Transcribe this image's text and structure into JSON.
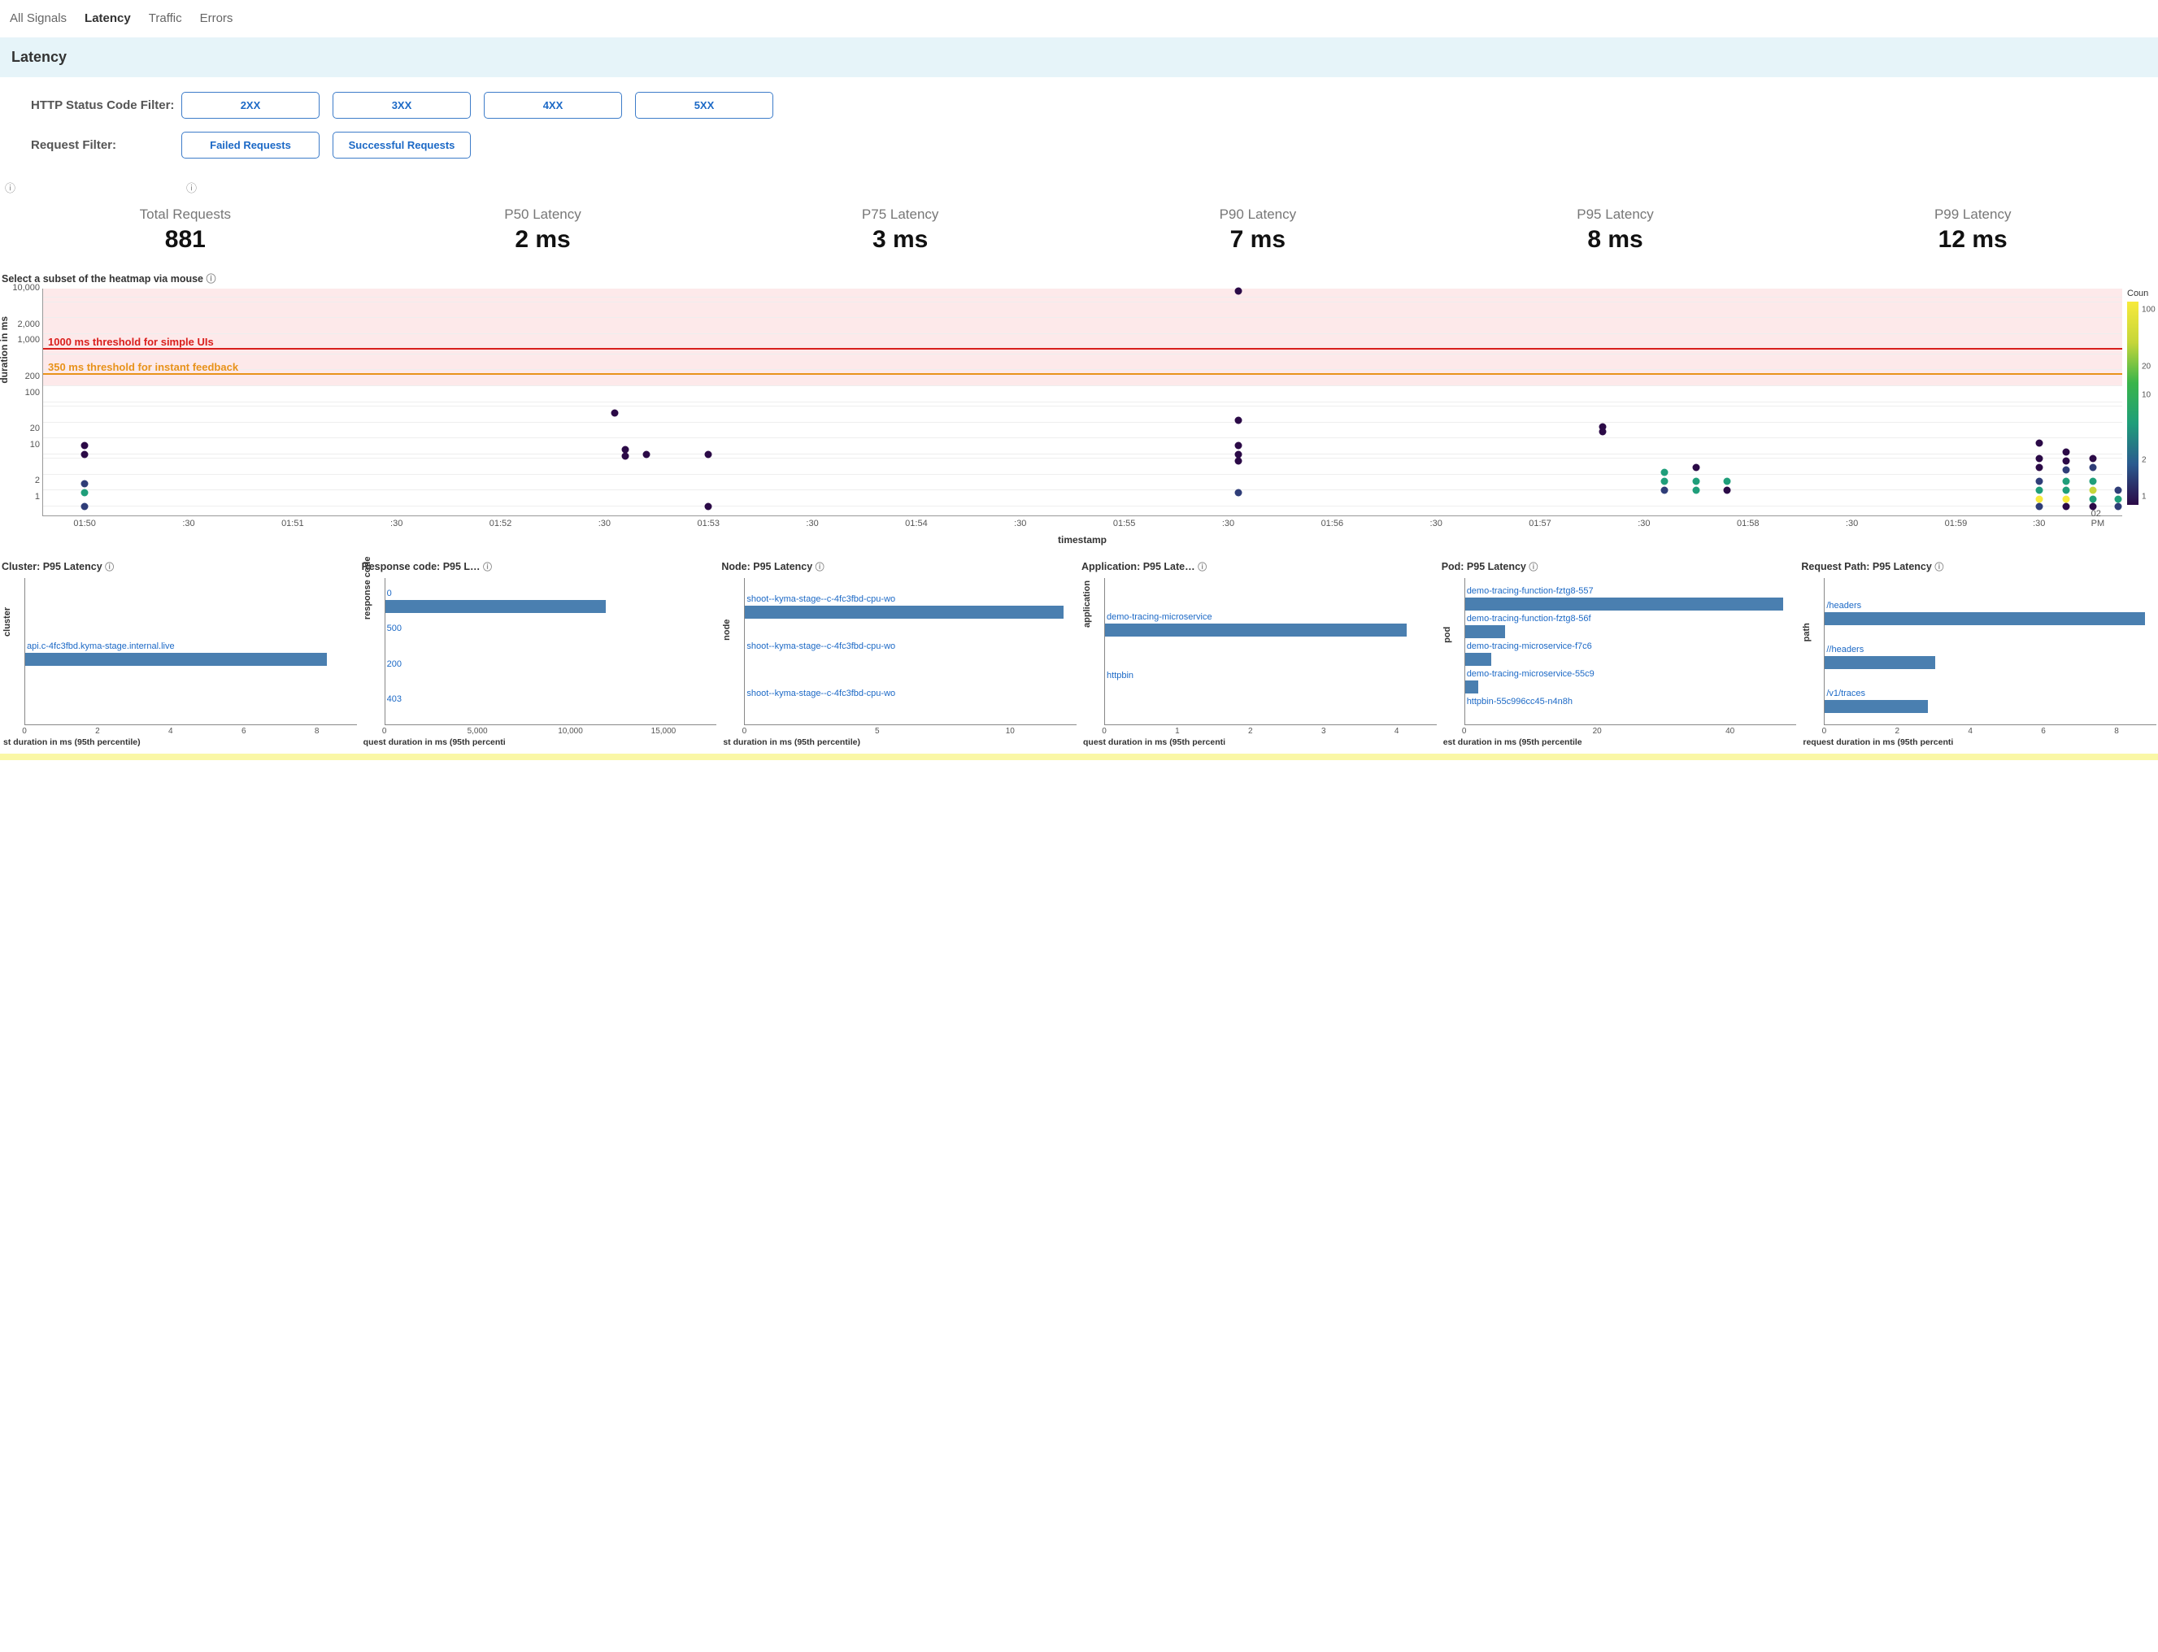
{
  "tabs": [
    "All Signals",
    "Latency",
    "Traffic",
    "Errors"
  ],
  "activeTab": 1,
  "bannerTitle": "Latency",
  "filters": {
    "statusLabel": "HTTP Status Code Filter:",
    "statusOptions": [
      "2XX",
      "3XX",
      "4XX",
      "5XX"
    ],
    "requestLabel": "Request Filter:",
    "requestOptions": [
      "Failed Requests",
      "Successful Requests"
    ]
  },
  "metrics": [
    {
      "title": "Total Requests",
      "value": "881"
    },
    {
      "title": "P50 Latency",
      "value": "2 ms"
    },
    {
      "title": "P75 Latency",
      "value": "3 ms"
    },
    {
      "title": "P90 Latency",
      "value": "7 ms"
    },
    {
      "title": "P95 Latency",
      "value": "8 ms"
    },
    {
      "title": "P99 Latency",
      "value": "12 ms"
    }
  ],
  "heatmap": {
    "caption": "Select a subset of the heatmap via mouse",
    "yAxisLabel": "duration in ms",
    "xAxisLabel": "timestamp",
    "yTicks": [
      {
        "label": "10,000",
        "pct": 96
      },
      {
        "label": "2,000",
        "pct": 80
      },
      {
        "label": "1,000",
        "pct": 73
      },
      {
        "label": "200",
        "pct": 57
      },
      {
        "label": "100",
        "pct": 50
      },
      {
        "label": "20",
        "pct": 34
      },
      {
        "label": "10",
        "pct": 27
      },
      {
        "label": "2",
        "pct": 11
      },
      {
        "label": "1",
        "pct": 4
      }
    ],
    "xTicks": [
      {
        "label": "01:50",
        "pct": 2
      },
      {
        "label": ":30",
        "pct": 7
      },
      {
        "label": "01:51",
        "pct": 12
      },
      {
        "label": ":30",
        "pct": 17
      },
      {
        "label": "01:52",
        "pct": 22
      },
      {
        "label": ":30",
        "pct": 27
      },
      {
        "label": "01:53",
        "pct": 32
      },
      {
        "label": ":30",
        "pct": 37
      },
      {
        "label": "01:54",
        "pct": 42
      },
      {
        "label": ":30",
        "pct": 47
      },
      {
        "label": "01:55",
        "pct": 52
      },
      {
        "label": ":30",
        "pct": 57
      },
      {
        "label": "01:56",
        "pct": 62
      },
      {
        "label": ":30",
        "pct": 67
      },
      {
        "label": "01:57",
        "pct": 72
      },
      {
        "label": ":30",
        "pct": 77
      },
      {
        "label": "01:58",
        "pct": 82
      },
      {
        "label": ":30",
        "pct": 87
      },
      {
        "label": "01:59",
        "pct": 92
      },
      {
        "label": ":30",
        "pct": 96
      },
      {
        "label": "02 PM",
        "pct": 99
      }
    ],
    "pinkBand": {
      "topPct": 0,
      "bottomPct": 57
    },
    "gridPcts": [
      4,
      11,
      18,
      25,
      27,
      34,
      41,
      48,
      50,
      57,
      64,
      71,
      73,
      80,
      87,
      94,
      96
    ],
    "thresholds": [
      {
        "text": "1000 ms threshold for simple UIs",
        "pct": 73,
        "color": "#d9201d"
      },
      {
        "text": "350 ms threshold for instant feedback",
        "pct": 62,
        "color": "#e8921a"
      }
    ],
    "colorPalette": {
      "1": "#2b0a47",
      "2": "#2f3d78",
      "5": "#1f9e7a",
      "10": "#39b54a",
      "20": "#c6d63a",
      "100": "#f7ea3b"
    },
    "points": [
      {
        "x": 2,
        "y": 31,
        "c": "#2b0a47"
      },
      {
        "x": 2,
        "y": 27,
        "c": "#2b0a47"
      },
      {
        "x": 2,
        "y": 14,
        "c": "#2f3d78"
      },
      {
        "x": 2,
        "y": 10,
        "c": "#1f9e7a"
      },
      {
        "x": 2,
        "y": 4,
        "c": "#2f3d78"
      },
      {
        "x": 27.5,
        "y": 45,
        "c": "#2b0a47"
      },
      {
        "x": 28,
        "y": 29,
        "c": "#2b0a47"
      },
      {
        "x": 28,
        "y": 26,
        "c": "#2b0a47"
      },
      {
        "x": 29,
        "y": 27,
        "c": "#2b0a47"
      },
      {
        "x": 32,
        "y": 27,
        "c": "#2b0a47"
      },
      {
        "x": 32,
        "y": 4,
        "c": "#2b0a47"
      },
      {
        "x": 57.5,
        "y": 99,
        "c": "#2b0a47"
      },
      {
        "x": 57.5,
        "y": 42,
        "c": "#2b0a47"
      },
      {
        "x": 57.5,
        "y": 31,
        "c": "#2b0a47"
      },
      {
        "x": 57.5,
        "y": 27,
        "c": "#2b0a47"
      },
      {
        "x": 57.5,
        "y": 24,
        "c": "#2b0a47"
      },
      {
        "x": 57.5,
        "y": 10,
        "c": "#2f3d78"
      },
      {
        "x": 75,
        "y": 39,
        "c": "#2b0a47"
      },
      {
        "x": 75,
        "y": 37,
        "c": "#2b0a47"
      },
      {
        "x": 78,
        "y": 19,
        "c": "#1f9e7a"
      },
      {
        "x": 78,
        "y": 15,
        "c": "#1f9e7a"
      },
      {
        "x": 78,
        "y": 11,
        "c": "#2f3d78"
      },
      {
        "x": 79.5,
        "y": 21,
        "c": "#2b0a47"
      },
      {
        "x": 79.5,
        "y": 15,
        "c": "#1f9e7a"
      },
      {
        "x": 79.5,
        "y": 11,
        "c": "#1f9e7a"
      },
      {
        "x": 81,
        "y": 15,
        "c": "#1f9e7a"
      },
      {
        "x": 81,
        "y": 11,
        "c": "#2b0a47"
      },
      {
        "x": 96,
        "y": 32,
        "c": "#2b0a47"
      },
      {
        "x": 96,
        "y": 25,
        "c": "#2b0a47"
      },
      {
        "x": 96,
        "y": 21,
        "c": "#2b0a47"
      },
      {
        "x": 96,
        "y": 15,
        "c": "#2f3d78"
      },
      {
        "x": 96,
        "y": 11,
        "c": "#1f9e7a"
      },
      {
        "x": 96,
        "y": 7,
        "c": "#f7ea3b"
      },
      {
        "x": 96,
        "y": 4,
        "c": "#2f3d78"
      },
      {
        "x": 97.3,
        "y": 28,
        "c": "#2b0a47"
      },
      {
        "x": 97.3,
        "y": 24,
        "c": "#2b0a47"
      },
      {
        "x": 97.3,
        "y": 20,
        "c": "#2f3d78"
      },
      {
        "x": 97.3,
        "y": 15,
        "c": "#1f9e7a"
      },
      {
        "x": 97.3,
        "y": 11,
        "c": "#1f9e7a"
      },
      {
        "x": 97.3,
        "y": 7,
        "c": "#f7ea3b"
      },
      {
        "x": 97.3,
        "y": 4,
        "c": "#2b0a47"
      },
      {
        "x": 98.6,
        "y": 25,
        "c": "#2b0a47"
      },
      {
        "x": 98.6,
        "y": 21,
        "c": "#2f3d78"
      },
      {
        "x": 98.6,
        "y": 15,
        "c": "#1f9e7a"
      },
      {
        "x": 98.6,
        "y": 11,
        "c": "#c6d63a"
      },
      {
        "x": 98.6,
        "y": 7,
        "c": "#1f9e7a"
      },
      {
        "x": 98.6,
        "y": 4,
        "c": "#2b0a47"
      },
      {
        "x": 99.8,
        "y": 11,
        "c": "#2f3d78"
      },
      {
        "x": 99.8,
        "y": 7,
        "c": "#1f9e7a"
      },
      {
        "x": 99.8,
        "y": 4,
        "c": "#2f3d78"
      }
    ],
    "colorbar": {
      "title": "Coun",
      "ticks": [
        {
          "label": "100",
          "pct": 4
        },
        {
          "label": "20",
          "pct": 32
        },
        {
          "label": "10",
          "pct": 46
        },
        {
          "label": "2",
          "pct": 78
        },
        {
          "label": "1",
          "pct": 96
        }
      ]
    }
  },
  "smallCharts": [
    {
      "title": "Cluster: P95 Latency",
      "yAxisLabel": "cluster",
      "xAxisLabel": "st duration in ms (95th percentile)",
      "xTicks": [
        {
          "label": "0",
          "pct": 0
        },
        {
          "label": "2",
          "pct": 22
        },
        {
          "label": "4",
          "pct": 44
        },
        {
          "label": "6",
          "pct": 66
        },
        {
          "label": "8",
          "pct": 88
        }
      ],
      "bars": [
        {
          "label": "api.c-4fc3fbd.kyma-stage.internal.live",
          "value": 8.2,
          "max": 9,
          "yPct": 50
        }
      ]
    },
    {
      "title": "Response code: P95 L…",
      "yAxisLabel": "response code",
      "xAxisLabel": "quest duration in ms (95th percenti",
      "xTicks": [
        {
          "label": "0",
          "pct": 0
        },
        {
          "label": "5,000",
          "pct": 28
        },
        {
          "label": "10,000",
          "pct": 56
        },
        {
          "label": "15,000",
          "pct": 84
        }
      ],
      "bars": [
        {
          "label": "0",
          "value": 12000,
          "max": 18000,
          "yPct": 14
        },
        {
          "label": "500",
          "value": 0,
          "max": 18000,
          "yPct": 38
        },
        {
          "label": "200",
          "value": 0,
          "max": 18000,
          "yPct": 62
        },
        {
          "label": "403",
          "value": 0,
          "max": 18000,
          "yPct": 86
        }
      ]
    },
    {
      "title": "Node: P95 Latency",
      "yAxisLabel": "node",
      "xAxisLabel": "st duration in ms (95th percentile)",
      "xTicks": [
        {
          "label": "0",
          "pct": 0
        },
        {
          "label": "5",
          "pct": 40
        },
        {
          "label": "10",
          "pct": 80
        }
      ],
      "bars": [
        {
          "label": "shoot--kyma-stage--c-4fc3fbd-cpu-wo",
          "value": 12,
          "max": 12.5,
          "yPct": 18
        },
        {
          "label": "shoot--kyma-stage--c-4fc3fbd-cpu-wo",
          "value": 0,
          "max": 12.5,
          "yPct": 50
        },
        {
          "label": "shoot--kyma-stage--c-4fc3fbd-cpu-wo",
          "value": 0,
          "max": 12.5,
          "yPct": 82
        }
      ]
    },
    {
      "title": "Application: P95 Late…",
      "yAxisLabel": "application",
      "xAxisLabel": "quest duration in ms (95th percenti",
      "xTicks": [
        {
          "label": "0",
          "pct": 0
        },
        {
          "label": "1",
          "pct": 22
        },
        {
          "label": "2",
          "pct": 44
        },
        {
          "label": "3",
          "pct": 66
        },
        {
          "label": "4",
          "pct": 88
        }
      ],
      "bars": [
        {
          "label": "demo-tracing-microservice",
          "value": 4.1,
          "max": 4.5,
          "yPct": 30
        },
        {
          "label": "httpbin",
          "value": 0,
          "max": 4.5,
          "yPct": 70
        }
      ]
    },
    {
      "title": "Pod: P95 Latency",
      "yAxisLabel": "pod",
      "xAxisLabel": "est duration in ms (95th percentile",
      "xTicks": [
        {
          "label": "0",
          "pct": 0
        },
        {
          "label": "20",
          "pct": 40
        },
        {
          "label": "40",
          "pct": 80
        }
      ],
      "bars": [
        {
          "label": "demo-tracing-function-fztg8-557",
          "value": 48,
          "max": 50,
          "yPct": 12
        },
        {
          "label": "demo-tracing-function-fztg8-56f",
          "value": 6,
          "max": 50,
          "yPct": 31
        },
        {
          "label": "demo-tracing-microservice-f7c6",
          "value": 4,
          "max": 50,
          "yPct": 50
        },
        {
          "label": "demo-tracing-microservice-55c9",
          "value": 2,
          "max": 50,
          "yPct": 69
        },
        {
          "label": "httpbin-55c996cc45-n4n8h",
          "value": 0,
          "max": 50,
          "yPct": 88
        }
      ]
    },
    {
      "title": "Request Path: P95 Latency",
      "yAxisLabel": "path",
      "xAxisLabel": "request duration in ms (95th percenti",
      "xTicks": [
        {
          "label": "0",
          "pct": 0
        },
        {
          "label": "2",
          "pct": 22
        },
        {
          "label": "4",
          "pct": 44
        },
        {
          "label": "6",
          "pct": 66
        },
        {
          "label": "8",
          "pct": 88
        }
      ],
      "bars": [
        {
          "label": "/headers",
          "value": 8.7,
          "max": 9,
          "yPct": 22
        },
        {
          "label": "//headers",
          "value": 3.0,
          "max": 9,
          "yPct": 52
        },
        {
          "label": "/v1/traces",
          "value": 2.8,
          "max": 9,
          "yPct": 82
        }
      ]
    }
  ],
  "barColor": "#4a7fb0"
}
